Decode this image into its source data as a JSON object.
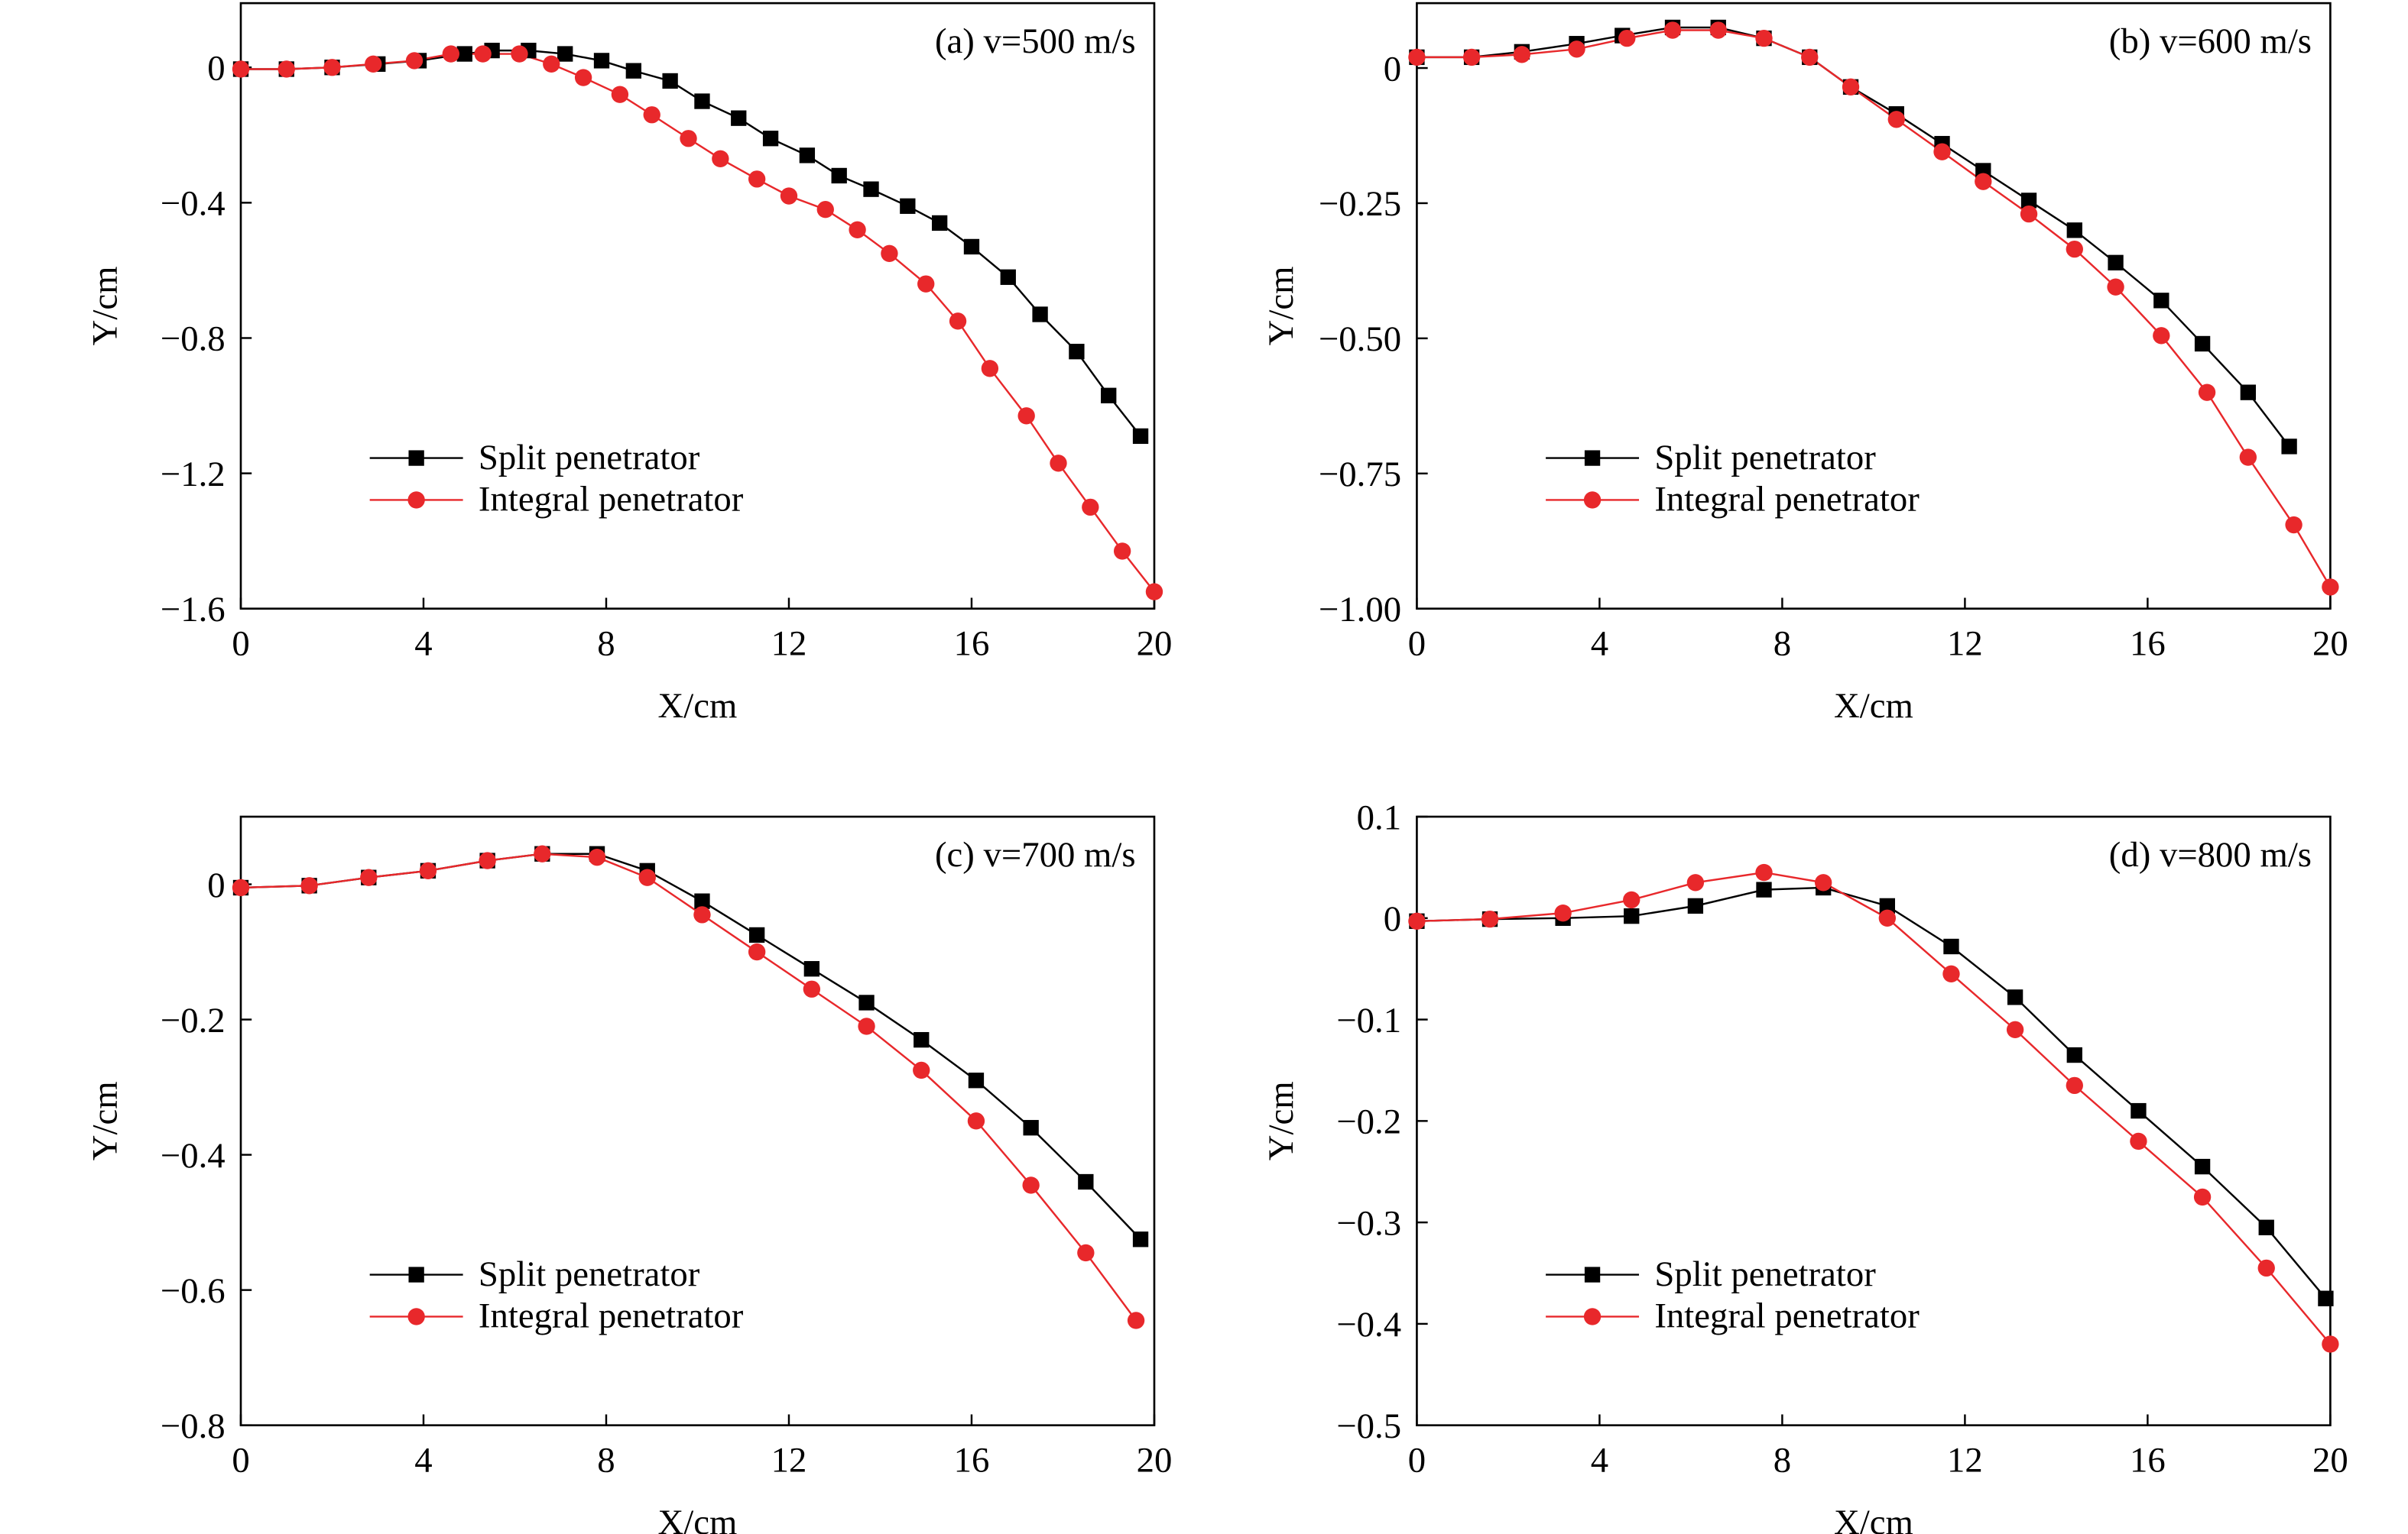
{
  "chart_data": [
    {
      "type": "line",
      "title": "(a) v=500 m/s",
      "xlabel": "X/cm",
      "ylabel": "Y/cm",
      "xlim": [
        0,
        20
      ],
      "ylim": [
        -1.6,
        0.19
      ],
      "xticks": [
        0,
        4,
        8,
        12,
        16,
        20
      ],
      "yticks": [
        0,
        {
          "value": -0.4,
          "label": "−0.4"
        },
        {
          "value": -0.8,
          "label": "−0.8"
        },
        {
          "value": -1.2,
          "label": "−1.2"
        },
        {
          "value": -1.6,
          "label": "−1.6"
        }
      ],
      "legend": "lower-left",
      "series": [
        {
          "name": "Split penetrator",
          "color": "#000000",
          "marker": "square",
          "x": [
            0,
            1.0,
            2.0,
            3.0,
            3.9,
            4.9,
            5.5,
            6.3,
            7.1,
            7.9,
            8.6,
            9.4,
            10.1,
            10.9,
            11.6,
            12.4,
            13.1,
            13.8,
            14.6,
            15.3,
            16.0,
            16.8,
            17.5,
            18.3,
            19.0,
            19.7
          ],
          "values": [
            -0.005,
            -0.005,
            0.0,
            0.01,
            0.02,
            0.04,
            0.05,
            0.05,
            0.04,
            0.02,
            -0.01,
            -0.04,
            -0.1,
            -0.15,
            -0.21,
            -0.26,
            -0.32,
            -0.36,
            -0.41,
            -0.46,
            -0.53,
            -0.62,
            -0.73,
            -0.84,
            -0.97,
            -1.09
          ]
        },
        {
          "name": "Integral penetrator",
          "color": "#e8282b",
          "marker": "circle",
          "x": [
            0,
            1.0,
            2.0,
            2.9,
            3.8,
            4.6,
            5.3,
            6.1,
            6.8,
            7.5,
            8.3,
            9.0,
            9.8,
            10.5,
            11.3,
            12.0,
            12.8,
            13.5,
            14.2,
            15.0,
            15.7,
            16.4,
            17.2,
            17.9,
            18.6,
            19.3,
            20.0
          ],
          "values": [
            -0.005,
            -0.005,
            0.0,
            0.01,
            0.02,
            0.04,
            0.04,
            0.04,
            0.01,
            -0.03,
            -0.08,
            -0.14,
            -0.21,
            -0.27,
            -0.33,
            -0.38,
            -0.42,
            -0.48,
            -0.55,
            -0.64,
            -0.75,
            -0.89,
            -1.03,
            -1.17,
            -1.3,
            -1.43,
            -1.55
          ]
        }
      ]
    },
    {
      "type": "line",
      "title": "(b) v=600 m/s",
      "xlabel": "X/cm",
      "ylabel": "Y/cm",
      "xlim": [
        0,
        20
      ],
      "ylim": [
        -1.0,
        0.12
      ],
      "xticks": [
        0,
        4,
        8,
        12,
        16,
        20
      ],
      "yticks": [
        0,
        {
          "value": -0.25,
          "label": "−0.25"
        },
        {
          "value": -0.5,
          "label": "−0.50"
        },
        {
          "value": -0.75,
          "label": "−0.75"
        },
        {
          "value": -1.0,
          "label": "−1.00"
        }
      ],
      "legend": "lower-left",
      "series": [
        {
          "name": "Split penetrator",
          "color": "#000000",
          "marker": "square",
          "x": [
            0,
            1.2,
            2.3,
            3.5,
            4.5,
            5.6,
            6.6,
            7.6,
            8.6,
            9.5,
            10.5,
            11.5,
            12.4,
            13.4,
            14.4,
            15.3,
            16.3,
            17.2,
            18.2,
            19.1
          ],
          "values": [
            0.02,
            0.02,
            0.03,
            0.045,
            0.06,
            0.075,
            0.075,
            0.055,
            0.02,
            -0.035,
            -0.085,
            -0.14,
            -0.19,
            -0.245,
            -0.3,
            -0.36,
            -0.43,
            -0.51,
            -0.6,
            -0.7
          ]
        },
        {
          "name": "Integral penetrator",
          "color": "#e8282b",
          "marker": "circle",
          "x": [
            0,
            1.2,
            2.3,
            3.5,
            4.6,
            5.6,
            6.6,
            7.6,
            8.6,
            9.5,
            10.5,
            11.5,
            12.4,
            13.4,
            14.4,
            15.3,
            16.3,
            17.3,
            18.2,
            19.2,
            20.0
          ],
          "values": [
            0.02,
            0.02,
            0.025,
            0.035,
            0.055,
            0.07,
            0.07,
            0.055,
            0.02,
            -0.035,
            -0.095,
            -0.155,
            -0.21,
            -0.27,
            -0.335,
            -0.405,
            -0.495,
            -0.6,
            -0.72,
            -0.845,
            -0.96
          ]
        }
      ]
    },
    {
      "type": "line",
      "title": "(c) v=700 m/s",
      "xlabel": "X/cm",
      "ylabel": "Y/cm",
      "xlim": [
        0,
        20
      ],
      "ylim": [
        -0.8,
        0.1
      ],
      "xticks": [
        0,
        4,
        8,
        12,
        16,
        20
      ],
      "yticks": [
        0,
        {
          "value": -0.2,
          "label": "−0.2"
        },
        {
          "value": -0.4,
          "label": "−0.4"
        },
        {
          "value": -0.6,
          "label": "−0.6"
        },
        {
          "value": -0.8,
          "label": "−0.8"
        }
      ],
      "legend": "lower-left",
      "series": [
        {
          "name": "Split penetrator",
          "color": "#000000",
          "marker": "square",
          "x": [
            0,
            1.5,
            2.8,
            4.1,
            5.4,
            6.6,
            7.8,
            8.9,
            10.1,
            11.3,
            12.5,
            13.7,
            14.9,
            16.1,
            17.3,
            18.5,
            19.7
          ],
          "values": [
            -0.005,
            -0.002,
            0.01,
            0.02,
            0.035,
            0.045,
            0.045,
            0.02,
            -0.025,
            -0.075,
            -0.125,
            -0.175,
            -0.23,
            -0.29,
            -0.36,
            -0.44,
            -0.525
          ]
        },
        {
          "name": "Integral penetrator",
          "color": "#e8282b",
          "marker": "circle",
          "x": [
            0,
            1.5,
            2.8,
            4.1,
            5.4,
            6.6,
            7.8,
            8.9,
            10.1,
            11.3,
            12.5,
            13.7,
            14.9,
            16.1,
            17.3,
            18.5,
            19.6
          ],
          "values": [
            -0.005,
            -0.002,
            0.01,
            0.02,
            0.035,
            0.045,
            0.04,
            0.01,
            -0.045,
            -0.1,
            -0.155,
            -0.21,
            -0.275,
            -0.35,
            -0.445,
            -0.545,
            -0.645
          ]
        }
      ]
    },
    {
      "type": "line",
      "title": "(d) v=800 m/s",
      "xlabel": "X/cm",
      "ylabel": "Y/cm",
      "xlim": [
        0,
        20
      ],
      "ylim": [
        -0.5,
        0.1
      ],
      "xticks": [
        0,
        4,
        8,
        12,
        16,
        20
      ],
      "yticks": [
        0.1,
        0,
        {
          "value": -0.1,
          "label": "−0.1"
        },
        {
          "value": -0.2,
          "label": "−0.2"
        },
        {
          "value": -0.3,
          "label": "−0.3"
        },
        {
          "value": -0.4,
          "label": "−0.4"
        },
        {
          "value": -0.5,
          "label": "−0.5"
        }
      ],
      "legend": "lower-left",
      "series": [
        {
          "name": "Split penetrator",
          "color": "#000000",
          "marker": "square",
          "x": [
            0,
            1.6,
            3.2,
            4.7,
            6.1,
            7.6,
            8.9,
            10.3,
            11.7,
            13.1,
            14.4,
            15.8,
            17.2,
            18.6,
            19.9
          ],
          "values": [
            -0.003,
            -0.001,
            0.0,
            0.002,
            0.012,
            0.028,
            0.03,
            0.012,
            -0.028,
            -0.078,
            -0.135,
            -0.19,
            -0.245,
            -0.305,
            -0.375
          ]
        },
        {
          "name": "Integral penetrator",
          "color": "#e8282b",
          "marker": "circle",
          "x": [
            0,
            1.6,
            3.2,
            4.7,
            6.1,
            7.6,
            8.9,
            10.3,
            11.7,
            13.1,
            14.4,
            15.8,
            17.2,
            18.6,
            20.0
          ],
          "values": [
            -0.003,
            -0.001,
            0.005,
            0.018,
            0.035,
            0.045,
            0.035,
            0.0,
            -0.055,
            -0.11,
            -0.165,
            -0.22,
            -0.275,
            -0.345,
            -0.42
          ]
        }
      ]
    }
  ]
}
